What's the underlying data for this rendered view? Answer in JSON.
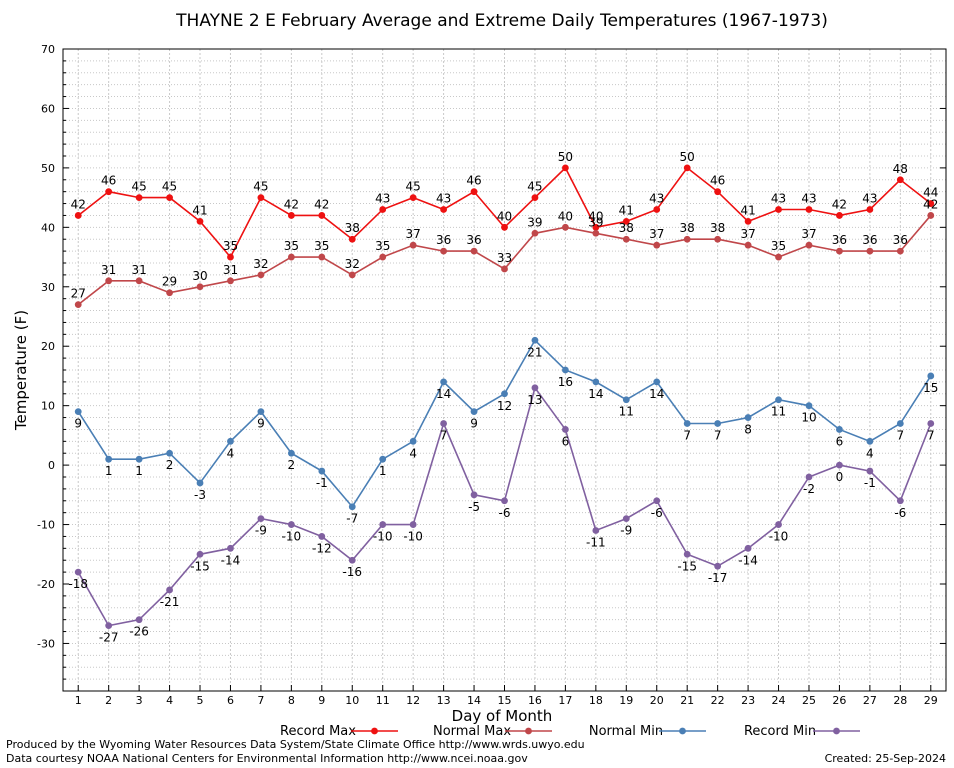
{
  "chart_data": {
    "type": "line",
    "title": "THAYNE 2 E February Average and Extreme Daily Temperatures (1967-1973)",
    "xlabel": "Day of Month",
    "ylabel": "Temperature (F)",
    "ylim": [
      -38,
      70
    ],
    "yticks": [
      70,
      60,
      50,
      40,
      30,
      20,
      10,
      0,
      -10,
      -20,
      -30
    ],
    "x": [
      1,
      2,
      3,
      4,
      5,
      6,
      7,
      8,
      9,
      10,
      11,
      12,
      13,
      14,
      15,
      16,
      17,
      18,
      19,
      20,
      21,
      22,
      23,
      24,
      25,
      26,
      27,
      28,
      29
    ],
    "grid": true,
    "legend_position": "bottom",
    "series": [
      {
        "name": "Record Max",
        "color": "#ee1111",
        "values": [
          42,
          46,
          45,
          45,
          41,
          35,
          45,
          42,
          42,
          38,
          43,
          45,
          43,
          46,
          40,
          45,
          50,
          40,
          41,
          43,
          50,
          46,
          41,
          43,
          43,
          42,
          43,
          48,
          44
        ]
      },
      {
        "name": "Normal Max",
        "color": "#c0474a",
        "values": [
          27,
          31,
          31,
          29,
          30,
          31,
          32,
          35,
          35,
          32,
          35,
          37,
          36,
          36,
          33,
          39,
          40,
          39,
          38,
          37,
          38,
          38,
          37,
          35,
          37,
          36,
          36,
          36,
          42
        ]
      },
      {
        "name": "Normal Min",
        "color": "#4a7fb5",
        "values": [
          9,
          1,
          1,
          2,
          -3,
          4,
          9,
          2,
          -1,
          -7,
          1,
          4,
          14,
          9,
          12,
          21,
          16,
          14,
          11,
          14,
          7,
          7,
          8,
          11,
          10,
          6,
          4,
          7,
          15
        ]
      },
      {
        "name": "Record Min",
        "color": "#8060a0",
        "values": [
          -18,
          -27,
          -26,
          -21,
          -15,
          -14,
          -9,
          -10,
          -12,
          -16,
          -10,
          -10,
          7,
          -5,
          -6,
          13,
          6,
          -11,
          -9,
          -6,
          -15,
          -17,
          -14,
          -10,
          -2,
          0,
          -1,
          -6,
          7
        ]
      }
    ]
  },
  "footer": {
    "line1": "Produced by the Wyoming Water Resources Data System/State Climate Office http://www.wrds.uwyo.edu",
    "line2": "Data courtesy NOAA National Centers for Environmental Information http://www.ncei.noaa.gov",
    "created": "Created:  25-Sep-2024"
  }
}
